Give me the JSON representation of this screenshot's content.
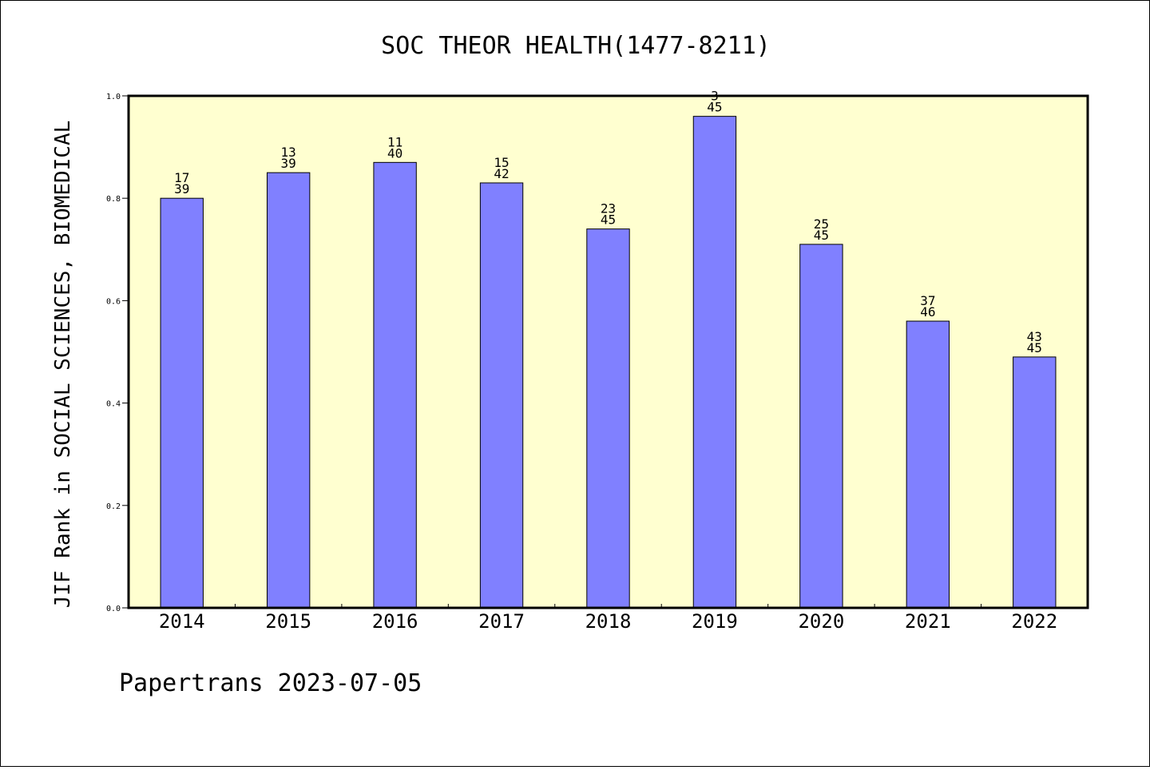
{
  "chart_data": {
    "type": "bar",
    "title": "SOC THEOR HEALTH(1477-8211)",
    "ylabel": "JIF Rank in SOCIAL SCIENCES, BIOMEDICAL",
    "xlabel": "",
    "ylim": [
      0,
      1.0
    ],
    "yticks": [
      "0.0",
      "0.2",
      "0.4",
      "0.6",
      "0.8",
      "1.0"
    ],
    "categories": [
      "2014",
      "2015",
      "2016",
      "2017",
      "2018",
      "2019",
      "2020",
      "2021",
      "2022"
    ],
    "values": [
      0.8,
      0.85,
      0.87,
      0.83,
      0.74,
      0.96,
      0.71,
      0.56,
      0.49
    ],
    "rank_labels": [
      {
        "rank": "17",
        "total": "39"
      },
      {
        "rank": "13",
        "total": "39"
      },
      {
        "rank": "11",
        "total": "40"
      },
      {
        "rank": "15",
        "total": "42"
      },
      {
        "rank": "23",
        "total": "45"
      },
      {
        "rank": "3",
        "total": "45"
      },
      {
        "rank": "25",
        "total": "45"
      },
      {
        "rank": "37",
        "total": "46"
      },
      {
        "rank": "43",
        "total": "45"
      }
    ],
    "bar_color": "#8080ff",
    "plot_background": "#ffffd0",
    "grid": false,
    "legend": "none"
  },
  "footer": "Papertrans 2023-07-05"
}
